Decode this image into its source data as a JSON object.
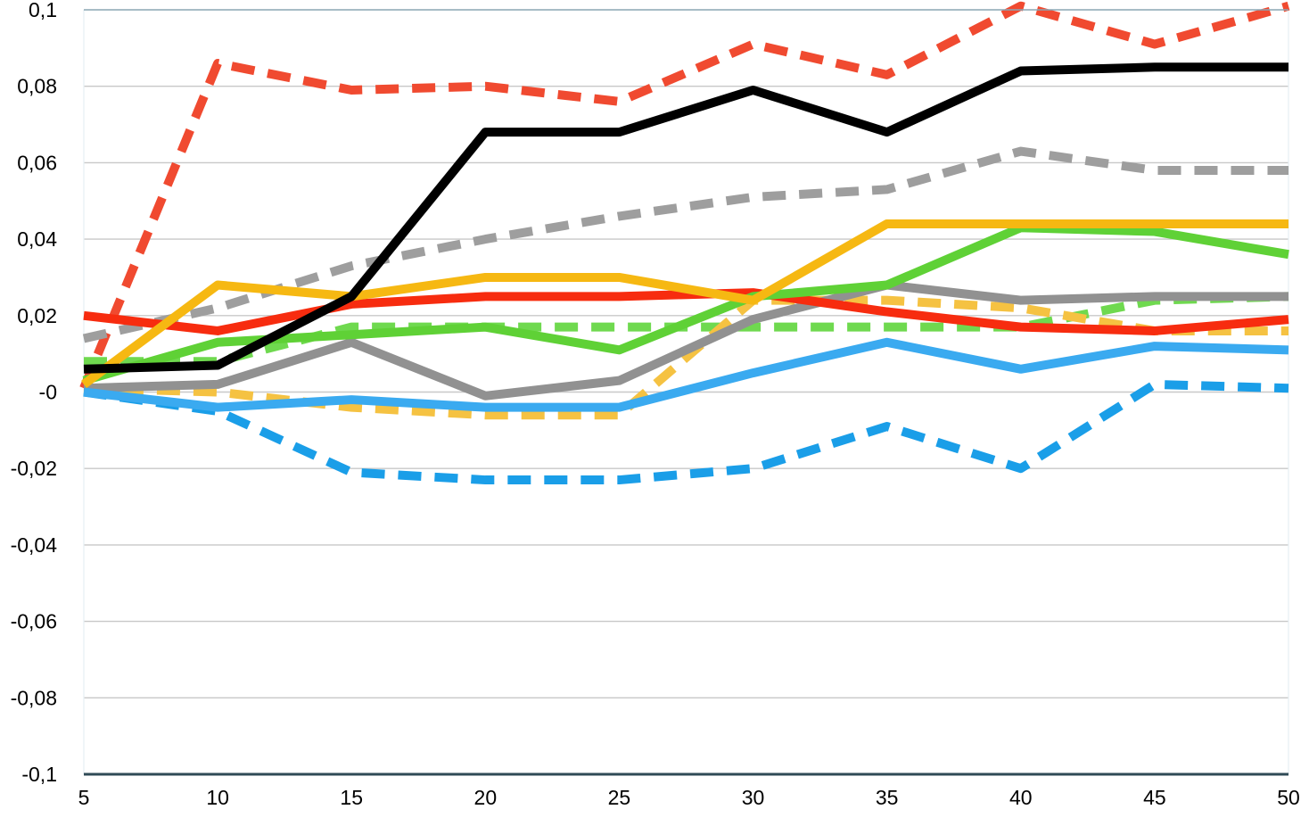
{
  "chart_data": {
    "type": "line",
    "title": "",
    "xlabel": "",
    "ylabel": "",
    "x": [
      5,
      10,
      15,
      20,
      25,
      30,
      35,
      40,
      45,
      50
    ],
    "x_tick_labels": [
      "5",
      "10",
      "15",
      "20",
      "25",
      "30",
      "35",
      "40",
      "45",
      "50"
    ],
    "ylim": [
      -0.1,
      0.1
    ],
    "y_ticks": [
      0.1,
      0.08,
      0.06,
      0.04,
      0.02,
      0,
      -0.02,
      -0.04,
      -0.06,
      -0.08,
      -0.1
    ],
    "y_tick_labels": [
      "0,1",
      "0,08",
      "0,06",
      "0,04",
      "0,02",
      "-0",
      "-0,02",
      "-0,04",
      "-0,06",
      "-0,08",
      "-0,1"
    ],
    "grid": true,
    "legend": "none",
    "series": [
      {
        "name": "series-red-dashed",
        "color": "#f04a30",
        "style": "dashed",
        "values": [
          0.001,
          0.086,
          0.079,
          0.08,
          0.076,
          0.091,
          0.083,
          0.101,
          0.091,
          0.101
        ]
      },
      {
        "name": "series-gray-dashed",
        "color": "#9e9e9e",
        "style": "dashed",
        "values": [
          0.014,
          0.022,
          0.033,
          0.04,
          0.046,
          0.051,
          0.053,
          0.063,
          0.058,
          0.058
        ]
      },
      {
        "name": "series-green-dashed",
        "color": "#6fd94f",
        "style": "dashed",
        "values": [
          0.008,
          0.008,
          0.017,
          0.017,
          0.017,
          0.017,
          0.017,
          0.017,
          0.024,
          0.025
        ]
      },
      {
        "name": "series-yellow-dashed",
        "color": "#f5c242",
        "style": "dashed",
        "values": [
          0.001,
          0.0,
          -0.004,
          -0.006,
          -0.006,
          0.024,
          0.024,
          0.022,
          0.016,
          0.016
        ]
      },
      {
        "name": "series-blue-dashed",
        "color": "#1a9ee8",
        "style": "dashed",
        "values": [
          0.0,
          -0.005,
          -0.021,
          -0.023,
          -0.023,
          -0.02,
          -0.009,
          -0.02,
          0.002,
          0.001
        ]
      },
      {
        "name": "series-gray",
        "color": "#919191",
        "style": "solid",
        "values": [
          0.001,
          0.002,
          0.013,
          -0.001,
          0.003,
          0.019,
          0.028,
          0.024,
          0.025,
          0.025
        ]
      },
      {
        "name": "series-blue",
        "color": "#3aaaf0",
        "style": "solid",
        "values": [
          0.0,
          -0.004,
          -0.002,
          -0.004,
          -0.004,
          0.005,
          0.013,
          0.006,
          0.012,
          0.011
        ]
      },
      {
        "name": "series-red",
        "color": "#f72c0f",
        "style": "solid",
        "values": [
          0.02,
          0.016,
          0.023,
          0.025,
          0.025,
          0.026,
          0.021,
          0.017,
          0.016,
          0.019
        ]
      },
      {
        "name": "series-green",
        "color": "#5fd136",
        "style": "solid",
        "values": [
          0.003,
          0.013,
          0.015,
          0.017,
          0.011,
          0.025,
          0.028,
          0.043,
          0.042,
          0.036
        ]
      },
      {
        "name": "series-yellow",
        "color": "#f6b812",
        "style": "solid",
        "values": [
          0.002,
          0.028,
          0.025,
          0.03,
          0.03,
          0.024,
          0.044,
          0.044,
          0.044,
          0.044
        ]
      },
      {
        "name": "series-black",
        "color": "#000000",
        "style": "solid",
        "values": [
          0.006,
          0.007,
          0.025,
          0.068,
          0.068,
          0.079,
          0.068,
          0.084,
          0.085,
          0.085
        ]
      }
    ]
  }
}
